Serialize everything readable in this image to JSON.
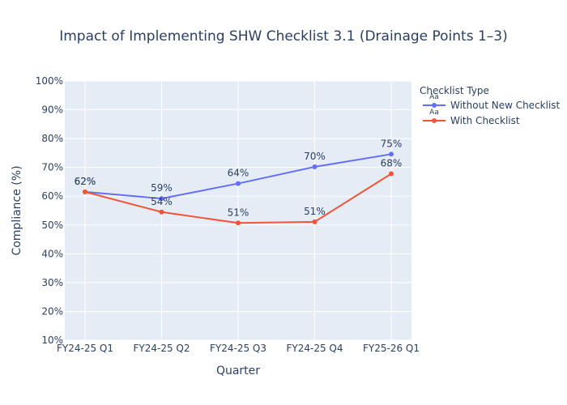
{
  "chart_data": {
    "type": "line",
    "title": "Impact of Implementing SHW Checklist 3.1 (Drainage Points 1–3)",
    "xlabel": "Quarter",
    "ylabel": "Compliance (%)",
    "ylim": [
      10,
      100
    ],
    "ytick_values": [
      10,
      20,
      30,
      40,
      50,
      60,
      70,
      80,
      90,
      100
    ],
    "ytick_labels": [
      "10%",
      "20%",
      "30%",
      "40%",
      "50%",
      "60%",
      "70%",
      "80%",
      "90%",
      "100%"
    ],
    "categories": [
      "FY24-25 Q1",
      "FY24-25 Q2",
      "FY24-25 Q3",
      "FY24-25 Q4",
      "FY25-26 Q1"
    ],
    "grid": true,
    "legend": {
      "title": "Checklist Type",
      "position": "top-right",
      "marker_text": "Aa"
    },
    "series": [
      {
        "name": "Without New Checklist",
        "color": "#636efa",
        "values": [
          61.5,
          59.2,
          64.4,
          70.2,
          74.6
        ],
        "labels": [
          "62%",
          "59%",
          "64%",
          "70%",
          "75%"
        ]
      },
      {
        "name": "With Checklist",
        "color": "#ef553b",
        "values": [
          61.5,
          54.5,
          50.7,
          51.1,
          67.8
        ],
        "labels": [
          "62%",
          "54%",
          "51%",
          "51%",
          "68%"
        ]
      }
    ]
  }
}
